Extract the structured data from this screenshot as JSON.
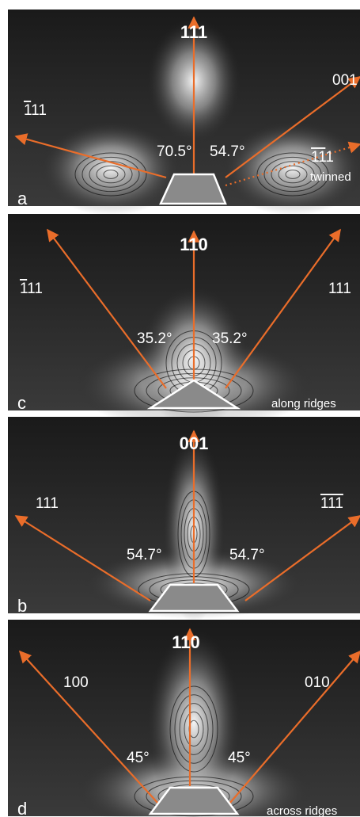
{
  "panels": [
    {
      "label": "a",
      "title": "111",
      "directions": [
        {
          "text": "111",
          "overline": 1
        },
        {
          "text": "001"
        },
        {
          "text": "111",
          "overline": 2
        }
      ],
      "angles": [
        "70.5°",
        "54.7°"
      ],
      "note": "twinned"
    },
    {
      "label": "c",
      "title": "110",
      "directions": [
        {
          "text": "111",
          "overline": 1
        },
        {
          "text": "111"
        }
      ],
      "angles": [
        "35.2°",
        "35.2°"
      ],
      "note": "along ridges"
    },
    {
      "label": "b",
      "title": "001",
      "directions": [
        {
          "text": "111"
        },
        {
          "text": "111",
          "overline": 3
        }
      ],
      "angles": [
        "54.7°",
        "54.7°"
      ]
    },
    {
      "label": "d",
      "title": "110",
      "directions": [
        {
          "text": "100"
        },
        {
          "text": "010"
        }
      ],
      "angles": [
        "45°",
        "45°"
      ],
      "note": "across ridges"
    }
  ]
}
